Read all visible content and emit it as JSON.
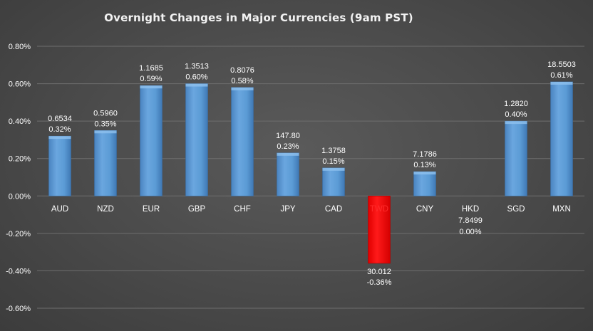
{
  "chart_data": {
    "type": "bar",
    "title": "Overnight Changes in Major Currencies (9am PST)",
    "xlabel": "",
    "ylabel": "",
    "ylim": [
      -0.6,
      0.8
    ],
    "yticks": [
      0.8,
      0.6,
      0.4,
      0.2,
      0.0,
      -0.2,
      -0.4,
      -0.6
    ],
    "ytick_labels": [
      "0.80%",
      "0.60%",
      "0.40%",
      "0.20%",
      "0.00%",
      "-0.20%",
      "-0.40%",
      "-0.60%"
    ],
    "grid": true,
    "legend": "none",
    "categories": [
      "AUD",
      "NZD",
      "EUR",
      "GBP",
      "CHF",
      "JPY",
      "CAD",
      "TWD",
      "CNY",
      "HKD",
      "SGD",
      "MXN"
    ],
    "values": [
      0.32,
      0.35,
      0.59,
      0.6,
      0.58,
      0.23,
      0.15,
      -0.36,
      0.13,
      0.0,
      0.4,
      0.61
    ],
    "rates": [
      "0.6534",
      "0.5960",
      "1.1685",
      "1.3513",
      "0.8076",
      "147.80",
      "1.3758",
      "30.012",
      "7.1786",
      "7.8499",
      "1.2820",
      "18.5503"
    ],
    "pct_labels": [
      "0.32%",
      "0.35%",
      "0.59%",
      "0.60%",
      "0.58%",
      "0.23%",
      "0.15%",
      "-0.36%",
      "0.13%",
      "0.00%",
      "0.40%",
      "0.61%"
    ],
    "colors": {
      "positive": "#5b9bd5",
      "negative": "#ff0000"
    }
  }
}
